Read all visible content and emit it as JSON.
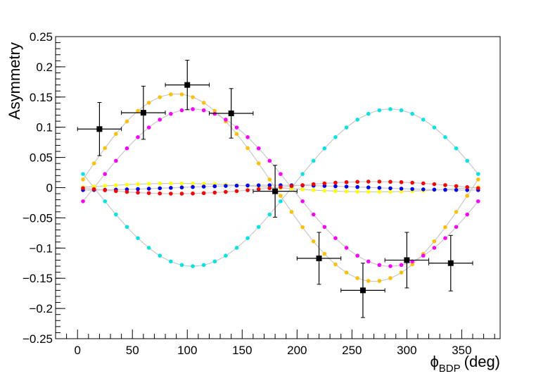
{
  "chart_data": {
    "type": "scatter",
    "title": "",
    "xlabel": "ϕ",
    "xlabel_sub": "BDP",
    "xlabel_unit": "(deg)",
    "ylabel": "Asymmetry",
    "xlim": [
      -20,
      385
    ],
    "ylim": [
      -0.25,
      0.25
    ],
    "x_ticks": [
      0,
      50,
      100,
      150,
      200,
      250,
      300,
      350
    ],
    "x_tick_labels": [
      "0",
      "50",
      "100",
      "150",
      "200",
      "250",
      "300",
      "350"
    ],
    "y_ticks": [
      0.25,
      0.2,
      0.15,
      0.1,
      0.05,
      0,
      -0.05,
      -0.1,
      -0.15,
      -0.2,
      -0.25
    ],
    "y_tick_labels": [
      "0.25",
      "0.2",
      "0.15",
      "0.1",
      "0.05",
      "0",
      "−0.05",
      "−0.1",
      "−0.15",
      "−0.2",
      "−0.25"
    ],
    "grid": false,
    "curve_color": "#c8c8c8",
    "series": [
      {
        "color": "#ffc000",
        "amp_sin": 0.155,
        "amp_sin2": 0.0,
        "amp_cos": 0.0,
        "offset": 0.0,
        "phase": 0.0
      },
      {
        "color": "#ff00ff",
        "amp_sin": 0.13,
        "amp_sin2": 0.0,
        "amp_cos": 0.0,
        "offset": 0.0,
        "phase": -15.0
      },
      {
        "color": "#00e5e5",
        "amp_sin": -0.13,
        "amp_sin2": 0.0,
        "amp_cos": 0.0,
        "offset": 0.0,
        "phase": -15.0
      },
      {
        "color": "#ffff00",
        "amp_sin": 0.007,
        "amp_sin2": 0.0,
        "amp_cos": 0.0,
        "offset": 0.0,
        "phase": 0.0
      },
      {
        "color": "#0000ff",
        "amp_sin": 0.0,
        "amp_sin2": 0.0,
        "amp_cos": -0.004,
        "offset": 0.0,
        "phase": 0.0
      },
      {
        "color": "#ff0000",
        "amp_sin": -0.01,
        "amp_sin2": 0.0,
        "amp_cos": 0.0,
        "offset": 0.0,
        "phase": 0.0
      }
    ],
    "model_x_start": 5,
    "model_x_end": 365,
    "model_x_step": 10,
    "data_points": [
      {
        "x": 20,
        "y": 0.097,
        "xerr": 20,
        "yerr": 0.044
      },
      {
        "x": 60,
        "y": 0.124,
        "xerr": 20,
        "yerr": 0.044
      },
      {
        "x": 100,
        "y": 0.17,
        "xerr": 20,
        "yerr": 0.041
      },
      {
        "x": 140,
        "y": 0.123,
        "xerr": 20,
        "yerr": 0.041
      },
      {
        "x": 180,
        "y": -0.006,
        "xerr": 20,
        "yerr": 0.043
      },
      {
        "x": 220,
        "y": -0.117,
        "xerr": 20,
        "yerr": 0.043
      },
      {
        "x": 260,
        "y": -0.17,
        "xerr": 20,
        "yerr": 0.045
      },
      {
        "x": 300,
        "y": -0.12,
        "xerr": 20,
        "yerr": 0.046
      },
      {
        "x": 340,
        "y": -0.125,
        "xerr": 20,
        "yerr": 0.046
      }
    ]
  }
}
